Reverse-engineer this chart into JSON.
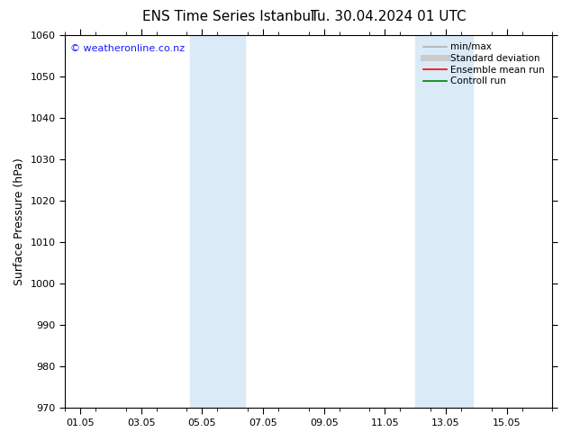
{
  "title": "ENS Time Series Istanbul",
  "subtitle": "Tu. 30.04.2024 01 UTC",
  "ylabel": "Surface Pressure (hPa)",
  "ylim": [
    970,
    1060
  ],
  "yticks": [
    970,
    980,
    990,
    1000,
    1010,
    1020,
    1030,
    1040,
    1050,
    1060
  ],
  "xtick_labels": [
    "01.05",
    "03.05",
    "05.05",
    "07.05",
    "09.05",
    "11.05",
    "13.05",
    "15.05"
  ],
  "xtick_positions": [
    0,
    2,
    4,
    6,
    8,
    10,
    12,
    14
  ],
  "xmin": -0.5,
  "xmax": 15.5,
  "shaded_bands": [
    {
      "x_start": 3.6,
      "x_end": 5.4
    },
    {
      "x_start": 11.0,
      "x_end": 12.9
    }
  ],
  "shade_color": "#daeaf7",
  "background_color": "#ffffff",
  "watermark_text": "© weatheronline.co.nz",
  "watermark_color": "#1a1aff",
  "legend_entries": [
    {
      "label": "min/max",
      "color": "#b0b0b0",
      "lw": 1.2
    },
    {
      "label": "Standard deviation",
      "color": "#cccccc",
      "lw": 5
    },
    {
      "label": "Ensemble mean run",
      "color": "#ff0000",
      "lw": 1.2
    },
    {
      "label": "Controll run",
      "color": "#008000",
      "lw": 1.2
    }
  ],
  "title_fontsize": 11,
  "tick_fontsize": 8,
  "ylabel_fontsize": 9,
  "watermark_fontsize": 8,
  "legend_fontsize": 7.5
}
